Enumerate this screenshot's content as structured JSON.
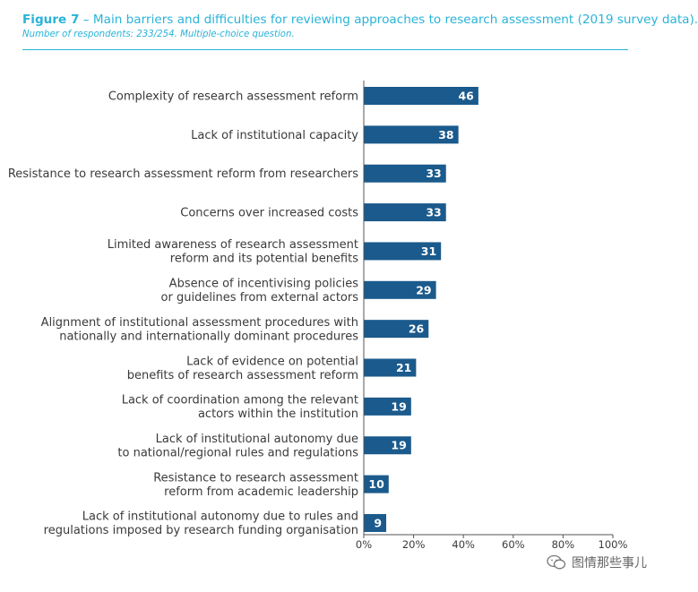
{
  "figure": {
    "label": "Figure 7",
    "title_text": " – Main barriers and difficulties for reviewing approaches to research assessment (2019 survey data).",
    "subtitle": "Number of respondents: 233/254. Multiple-choice question."
  },
  "colors": {
    "accent": "#29b3d9",
    "bar": "#1b5a8c",
    "axis": "#555555"
  },
  "watermark": {
    "icon": "wechat-bubble-icon",
    "text": "图情那些事儿"
  },
  "chart_data": {
    "type": "bar",
    "orientation": "horizontal",
    "categories": [
      [
        "Complexity of research assessment reform"
      ],
      [
        "Lack of institutional capacity"
      ],
      [
        "Resistance to research assessment reform from researchers"
      ],
      [
        "Concerns over increased costs"
      ],
      [
        "Limited awareness of research assessment",
        "reform and its potential benefits"
      ],
      [
        "Absence of incentivising policies",
        "or guidelines from external actors"
      ],
      [
        "Alignment of institutional assessment procedures with",
        "nationally and internationally dominant procedures"
      ],
      [
        "Lack of evidence on potential",
        "benefits of research assessment reform"
      ],
      [
        "Lack of coordination among the relevant",
        "actors within the institution"
      ],
      [
        "Lack of institutional autonomy due",
        "to national/regional rules and regulations"
      ],
      [
        "Resistance to research assessment",
        "reform from academic leadership"
      ],
      [
        "Lack of institutional autonomy due to rules and",
        "regulations imposed by research funding organisation"
      ]
    ],
    "values": [
      46,
      38,
      33,
      33,
      31,
      29,
      26,
      21,
      19,
      19,
      10,
      9
    ],
    "xlim": [
      0,
      100
    ],
    "xticks": [
      "0%",
      "20%",
      "40%",
      "60%",
      "80%",
      "100%"
    ],
    "grid": false,
    "legend": "none"
  }
}
